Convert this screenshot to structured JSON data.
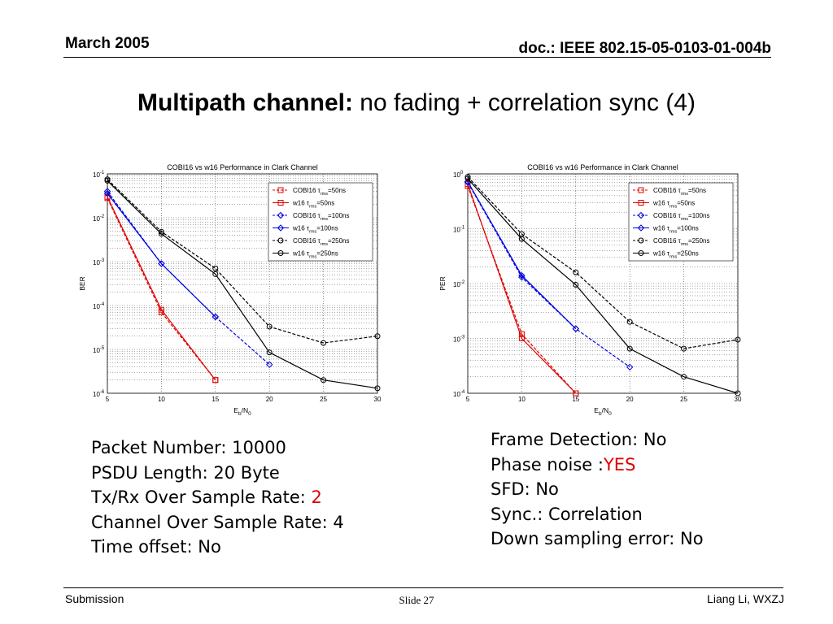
{
  "header": {
    "date": "March 2005",
    "doc": "doc.: IEEE 802.15-05-0103-01-004b"
  },
  "title": {
    "bold": "Multipath channel:",
    "rest": " no fading + correlation sync (4)"
  },
  "params_left": [
    {
      "text": "Packet Number: 10000",
      "highlight": ""
    },
    {
      "text": "PSDU Length: 20 Byte",
      "highlight": ""
    },
    {
      "text": "Tx/Rx Over Sample Rate: ",
      "highlight": "2"
    },
    {
      "text": "Channel Over Sample Rate: 4",
      "highlight": ""
    },
    {
      "text": "Time offset: No",
      "highlight": ""
    }
  ],
  "params_right": [
    {
      "text": "Frame Detection: No",
      "highlight": ""
    },
    {
      "text": "Phase noise :",
      "highlight": "YES"
    },
    {
      "text": "SFD: No",
      "highlight": ""
    },
    {
      "text": "Sync.: Correlation",
      "highlight": ""
    },
    {
      "text": "Down sampling error: No",
      "highlight": ""
    }
  ],
  "footer": {
    "left": "Submission",
    "center": "Slide 27",
    "right": "Liang Li, WXZJ"
  },
  "colors": {
    "red": "#e00000",
    "blue": "#0000e0",
    "black": "#000000"
  },
  "chart_data": [
    {
      "type": "line",
      "title": "COBI16 vs w16 Performance in Clark Channel",
      "xlabel_main": "E",
      "xlabel_sub1": "b",
      "xlabel_mid": "/N",
      "xlabel_sub2": "0",
      "ylabel": "BER",
      "xlim": [
        5,
        30
      ],
      "ylim_exp": [
        -6,
        -1
      ],
      "yscale": "log",
      "grid": true,
      "legend_position": "top-right",
      "x_ticks": [
        "5",
        "10",
        "15",
        "20",
        "25",
        "30"
      ],
      "y_ticks": [
        {
          "base": "10",
          "exp": "-6"
        },
        {
          "base": "10",
          "exp": "-5"
        },
        {
          "base": "10",
          "exp": "-4"
        },
        {
          "base": "10",
          "exp": "-3"
        },
        {
          "base": "10",
          "exp": "-2"
        },
        {
          "base": "10",
          "exp": "-1"
        }
      ],
      "series": [
        {
          "name": "COBI16 τrms=50ns",
          "prefix": "COBI16 τ",
          "sub": "rms",
          "suffix": "=50ns",
          "color": "#e00000",
          "dash": true,
          "marker": "square",
          "x": [
            5,
            10,
            15
          ],
          "y": [
            0.028,
            7e-05,
            2e-06
          ]
        },
        {
          "name": "w16 τrms=50ns",
          "prefix": "w16 τ",
          "sub": "rms",
          "suffix": "=50ns",
          "color": "#e00000",
          "dash": false,
          "marker": "square",
          "x": [
            5,
            10,
            15
          ],
          "y": [
            0.03,
            8e-05,
            2e-06
          ]
        },
        {
          "name": "COBI16 τrms=100ns",
          "prefix": "COBI16 τ",
          "sub": "rms",
          "suffix": "=100ns",
          "color": "#0000e0",
          "dash": true,
          "marker": "diamond",
          "x": [
            5,
            10,
            15,
            20
          ],
          "y": [
            0.04,
            0.0009,
            5.5e-05,
            4.5e-06
          ]
        },
        {
          "name": "w16 τrms=100ns",
          "prefix": "w16 τ",
          "sub": "rms",
          "suffix": "=100ns",
          "color": "#0000e0",
          "dash": false,
          "marker": "diamond",
          "x": [
            5,
            10,
            15
          ],
          "y": [
            0.036,
            0.0009,
            5.5e-05
          ]
        },
        {
          "name": "COBI16 τrms=250ns",
          "prefix": "COBI16 τ",
          "sub": "rms",
          "suffix": "=250ns",
          "color": "#000000",
          "dash": true,
          "marker": "circle",
          "x": [
            5,
            10,
            15,
            20,
            25,
            30
          ],
          "y": [
            0.075,
            0.0048,
            0.0007,
            3.3e-05,
            1.4e-05,
            2e-05
          ]
        },
        {
          "name": "w16 τrms=250ns",
          "prefix": "w16 τ",
          "sub": "rms",
          "suffix": "=250ns",
          "color": "#000000",
          "dash": false,
          "marker": "circle",
          "x": [
            5,
            10,
            15,
            20,
            25,
            30
          ],
          "y": [
            0.07,
            0.0043,
            0.00052,
            8.5e-06,
            2e-06,
            1.3e-06
          ]
        }
      ]
    },
    {
      "type": "line",
      "title": "COBI16 vs w16 Performance in Clark Channel",
      "xlabel_main": "E",
      "xlabel_sub1": "b",
      "xlabel_mid": "/N",
      "xlabel_sub2": "0",
      "ylabel": "PER",
      "xlim": [
        5,
        30
      ],
      "ylim_exp": [
        -4,
        0
      ],
      "yscale": "log",
      "grid": true,
      "legend_position": "top-right",
      "x_ticks": [
        "5",
        "10",
        "15",
        "20",
        "25",
        "30"
      ],
      "y_ticks": [
        {
          "base": "10",
          "exp": "-4"
        },
        {
          "base": "10",
          "exp": "-3"
        },
        {
          "base": "10",
          "exp": "-2"
        },
        {
          "base": "10",
          "exp": "-1"
        },
        {
          "base": "10",
          "exp": "0"
        }
      ],
      "series": [
        {
          "name": "COBI16 τrms=50ns",
          "prefix": "COBI16 τ",
          "sub": "rms",
          "suffix": "=50ns",
          "color": "#e00000",
          "dash": true,
          "marker": "square",
          "x": [
            5,
            10,
            15
          ],
          "y": [
            0.6,
            0.0012,
            0.0001
          ]
        },
        {
          "name": "w16 τrms=50ns",
          "prefix": "w16 τ",
          "sub": "rms",
          "suffix": "=50ns",
          "color": "#e00000",
          "dash": false,
          "marker": "square",
          "x": [
            5,
            10,
            15
          ],
          "y": [
            0.65,
            0.001,
            0.0001
          ]
        },
        {
          "name": "COBI16 τrms=100ns",
          "prefix": "COBI16 τ",
          "sub": "rms",
          "suffix": "=100ns",
          "color": "#0000e0",
          "dash": true,
          "marker": "diamond",
          "x": [
            5,
            10,
            15,
            20
          ],
          "y": [
            0.7,
            0.013,
            0.0015,
            0.0003
          ]
        },
        {
          "name": "w16 τrms=100ns",
          "prefix": "w16 τ",
          "sub": "rms",
          "suffix": "=100ns",
          "color": "#0000e0",
          "dash": false,
          "marker": "diamond",
          "x": [
            5,
            10,
            15
          ],
          "y": [
            0.72,
            0.014,
            0.0015
          ]
        },
        {
          "name": "COBI16 τrms=250ns",
          "prefix": "COBI16 τ",
          "sub": "rms",
          "suffix": "=250ns",
          "color": "#000000",
          "dash": true,
          "marker": "circle",
          "x": [
            5,
            10,
            15,
            20,
            25,
            30
          ],
          "y": [
            0.88,
            0.08,
            0.016,
            0.002,
            0.00065,
            0.00095
          ]
        },
        {
          "name": "w16 τrms=250ns",
          "prefix": "w16 τ",
          "sub": "rms",
          "suffix": "=250ns",
          "color": "#000000",
          "dash": false,
          "marker": "circle",
          "x": [
            5,
            10,
            15,
            20,
            25,
            30
          ],
          "y": [
            0.82,
            0.065,
            0.0095,
            0.00065,
            0.0002,
            0.0001
          ]
        }
      ]
    }
  ]
}
